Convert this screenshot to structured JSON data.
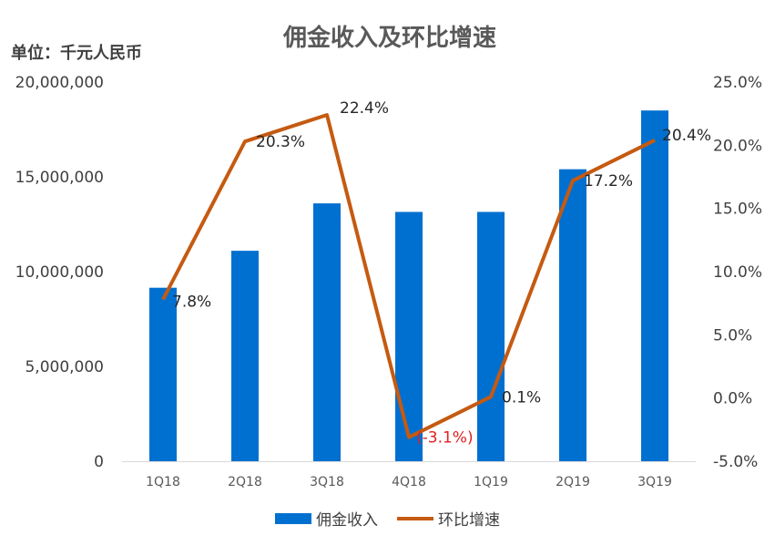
{
  "chart_data": {
    "type": "bar",
    "title": "佣金收入及环比增速",
    "unit_label": "单位：千元人民币",
    "categories": [
      "1Q18",
      "2Q18",
      "3Q18",
      "4Q18",
      "1Q19",
      "2Q19",
      "3Q19"
    ],
    "y_ticks": [
      "0",
      "5,000,000",
      "10,000,000",
      "15,000,000",
      "20,000,000"
    ],
    "y2_ticks": [
      "-5.0%",
      "0.0%",
      "5.0%",
      "10.0%",
      "15.0%",
      "20.0%",
      "25.0%"
    ],
    "ylim": [
      0,
      20000000
    ],
    "y2lim": [
      -5,
      25
    ],
    "grid": false,
    "legend_position": "bottom",
    "series": [
      {
        "name": "佣金收入",
        "type": "bar",
        "axis": "left",
        "color": "#0070d0",
        "values": [
          9150000,
          11100000,
          13600000,
          13150000,
          13150000,
          15400000,
          18500000
        ]
      },
      {
        "name": "环比增速",
        "type": "line",
        "axis": "right",
        "color": "#c55a11",
        "values": [
          7.8,
          20.3,
          22.4,
          -3.1,
          0.1,
          17.2,
          20.4
        ],
        "labels": [
          "7.8%",
          "20.3%",
          "22.4%",
          "(-3.1%)",
          "0.1%",
          "17.2%",
          "20.4%"
        ]
      }
    ]
  }
}
